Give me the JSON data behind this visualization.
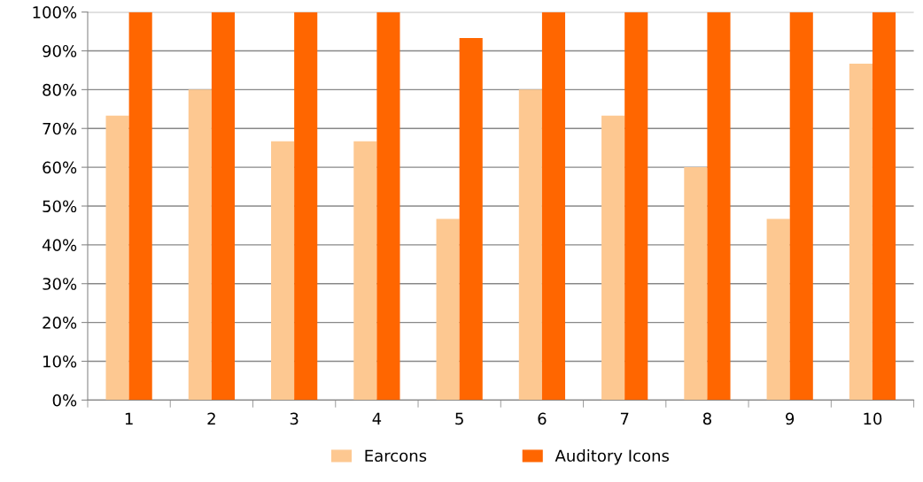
{
  "chart_data": {
    "type": "bar",
    "categories": [
      "1",
      "2",
      "3",
      "4",
      "5",
      "6",
      "7",
      "8",
      "9",
      "10"
    ],
    "series": [
      {
        "name": "Earcons",
        "color": "#fdc891",
        "values": [
          73.3,
          80,
          66.7,
          66.7,
          46.7,
          80,
          73.3,
          60,
          46.7,
          86.7
        ]
      },
      {
        "name": "Auditory Icons",
        "color": "#ff6600",
        "values": [
          100,
          100,
          100,
          100,
          93.3,
          100,
          100,
          100,
          100,
          100
        ]
      }
    ],
    "ylim": [
      0,
      100
    ],
    "yticks": [
      {
        "value": 0,
        "label": "0%"
      },
      {
        "value": 10,
        "label": "10%"
      },
      {
        "value": 20,
        "label": "20%"
      },
      {
        "value": 30,
        "label": "30%"
      },
      {
        "value": 40,
        "label": "40%"
      },
      {
        "value": 50,
        "label": "50%"
      },
      {
        "value": 60,
        "label": "60%"
      },
      {
        "value": 70,
        "label": "70%"
      },
      {
        "value": 80,
        "label": "80%"
      },
      {
        "value": 90,
        "label": "90%"
      },
      {
        "value": 100,
        "label": "100%"
      }
    ],
    "grid": "y",
    "legend": "bottom"
  }
}
